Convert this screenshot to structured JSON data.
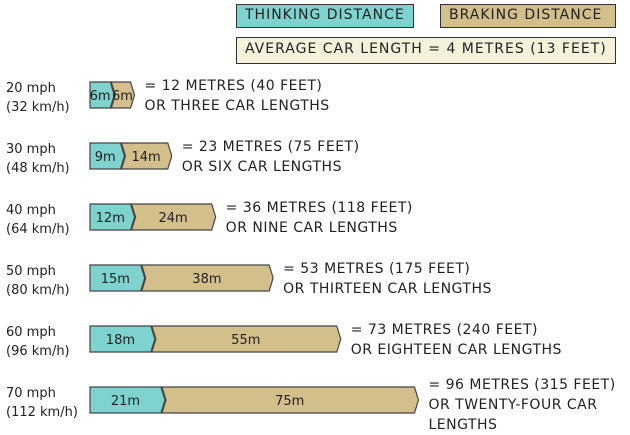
{
  "legend": {
    "thinking": "THINKING DISTANCE",
    "braking": "BRAKING DISTANCE",
    "average": "AVERAGE CAR LENGTH = 4 METRES (13 FEET)"
  },
  "colors": {
    "thinking": "#7ed3cf",
    "braking": "#d3bf8c",
    "average_bg": "#f5f2dc",
    "stroke": "#444444"
  },
  "chart_data": {
    "type": "bar",
    "stacked": true,
    "orientation": "horizontal",
    "categories": [
      "20 mph",
      "30 mph",
      "40 mph",
      "50 mph",
      "60 mph",
      "70 mph"
    ],
    "series": [
      {
        "name": "THINKING DISTANCE",
        "values": [
          6,
          9,
          12,
          15,
          18,
          21
        ]
      },
      {
        "name": "BRAKING DISTANCE",
        "values": [
          6,
          14,
          24,
          38,
          55,
          75
        ]
      }
    ],
    "rows": [
      {
        "speed": "20 mph",
        "speed_kmh": "(32 km/h)",
        "thinking": 6,
        "braking": 6,
        "thinking_label": "6m",
        "braking_label": "6m",
        "total_line1": "= 12 METRES (40 FEET)",
        "total_line2": "OR THREE CAR LENGTHS",
        "total_line3": ""
      },
      {
        "speed": "30 mph",
        "speed_kmh": "(48 km/h)",
        "thinking": 9,
        "braking": 14,
        "thinking_label": "9m",
        "braking_label": "14m",
        "total_line1": "= 23 METRES (75 FEET)",
        "total_line2": "OR SIX CAR LENGTHS",
        "total_line3": ""
      },
      {
        "speed": "40 mph",
        "speed_kmh": "(64 km/h)",
        "thinking": 12,
        "braking": 24,
        "thinking_label": "12m",
        "braking_label": "24m",
        "total_line1": "= 36 METRES (118 FEET)",
        "total_line2": "OR NINE CAR LENGTHS",
        "total_line3": ""
      },
      {
        "speed": "50 mph",
        "speed_kmh": "(80 km/h)",
        "thinking": 15,
        "braking": 38,
        "thinking_label": "15m",
        "braking_label": "38m",
        "total_line1": "= 53 METRES (175 FEET)",
        "total_line2": "OR THIRTEEN CAR LENGTHS",
        "total_line3": ""
      },
      {
        "speed": "60 mph",
        "speed_kmh": "(96 km/h)",
        "thinking": 18,
        "braking": 55,
        "thinking_label": "18m",
        "braking_label": "55m",
        "total_line1": "= 73 METRES (240 FEET)",
        "total_line2": "OR EIGHTEEN CAR LENGTHS",
        "total_line3": ""
      },
      {
        "speed": "70 mph",
        "speed_kmh": "(112 km/h)",
        "thinking": 21,
        "braking": 75,
        "thinking_label": "21m",
        "braking_label": "75m",
        "total_line1": "= 96 METRES (315 FEET)",
        "total_line2": "OR TWENTY-FOUR CAR",
        "total_line3": "LENGTHS"
      }
    ]
  }
}
